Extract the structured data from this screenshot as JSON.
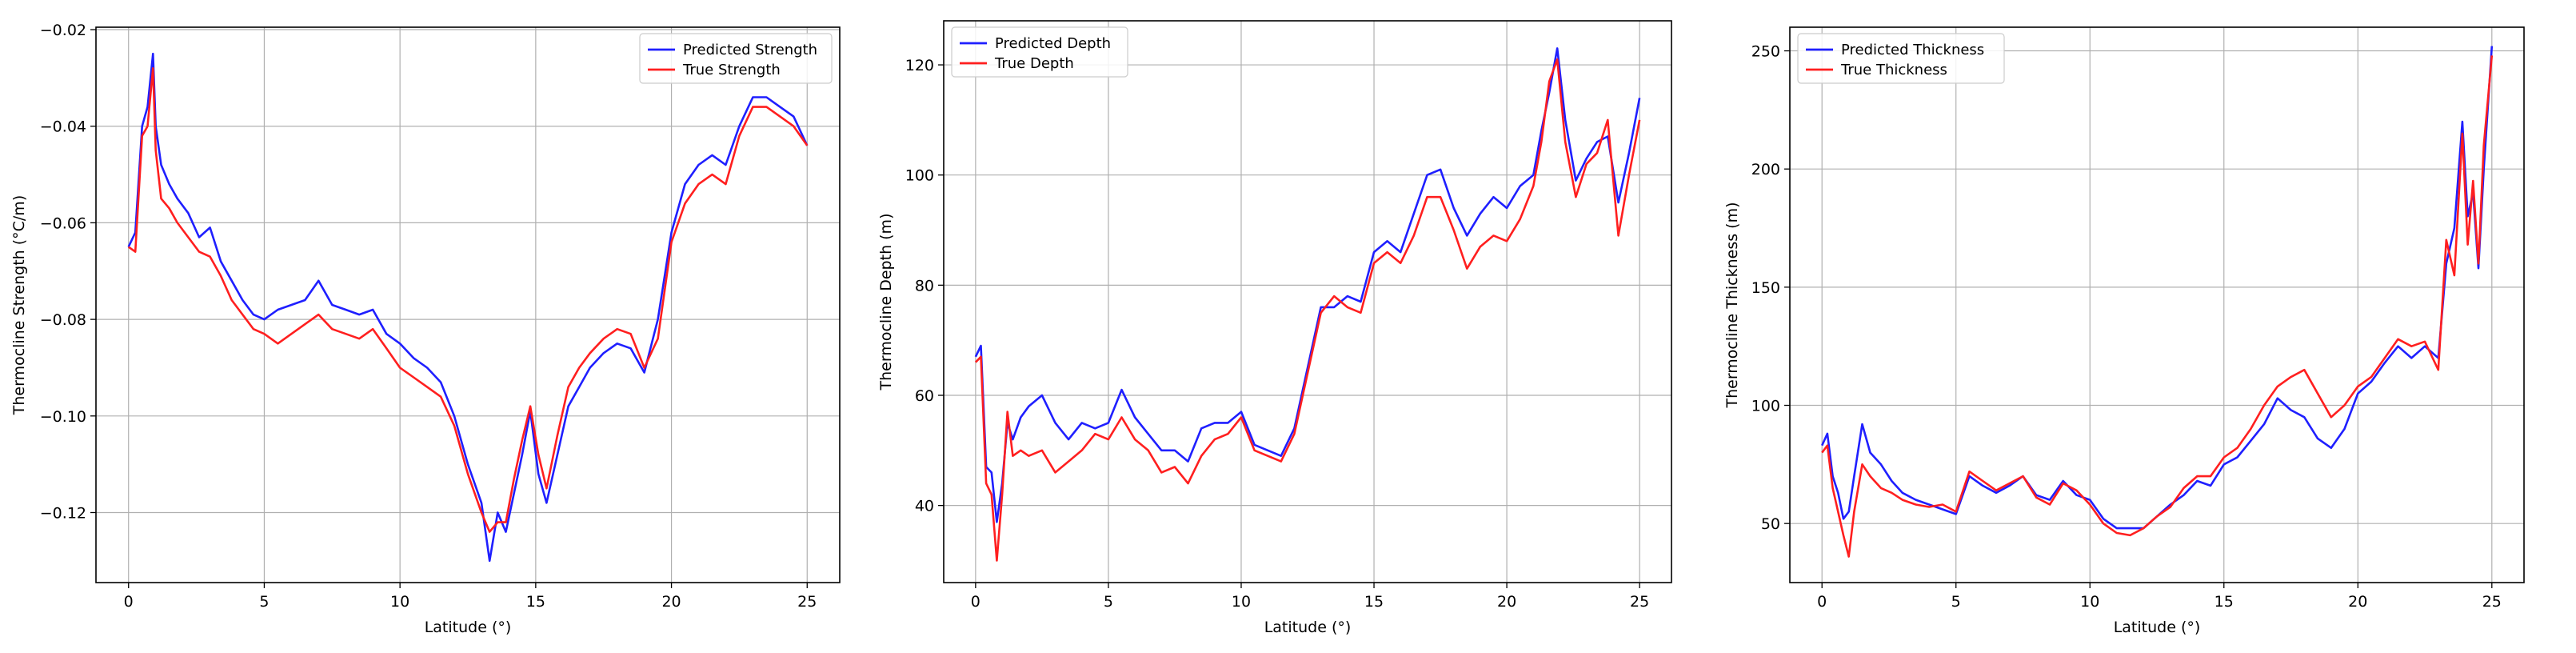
{
  "colors": {
    "predicted": "#1f1fff",
    "true": "#ff1f1f",
    "grid": "#b0b0b0",
    "axes": "#000000",
    "legend_border": "#cccccc"
  },
  "chart_data": [
    {
      "type": "line",
      "title": "",
      "xlabel": "Latitude (°)",
      "ylabel": "Thermocline Strength (°C/m)",
      "xlim": [
        -1.2,
        26.2
      ],
      "ylim": [
        -0.1345,
        -0.0195
      ],
      "xticks": [
        0,
        5,
        10,
        15,
        20,
        25
      ],
      "yticks": [
        -0.12,
        -0.1,
        -0.08,
        -0.06,
        -0.04,
        -0.02
      ],
      "ytick_labels": [
        "−0.12",
        "−0.10",
        "−0.08",
        "−0.06",
        "−0.04",
        "−0.02"
      ],
      "grid": true,
      "legend_position": "upper right",
      "series": [
        {
          "name": "Predicted Strength",
          "color": "#1f1fff",
          "x": [
            0,
            0.25,
            0.5,
            0.7,
            0.9,
            1.0,
            1.2,
            1.5,
            1.8,
            2.2,
            2.6,
            3.0,
            3.4,
            3.8,
            4.2,
            4.6,
            5.0,
            5.5,
            6.0,
            6.5,
            7.0,
            7.5,
            8.0,
            8.5,
            9.0,
            9.5,
            10.0,
            10.5,
            11.0,
            11.5,
            12.0,
            12.5,
            13.0,
            13.3,
            13.6,
            13.9,
            14.2,
            14.5,
            14.8,
            15.1,
            15.4,
            15.8,
            16.2,
            16.6,
            17.0,
            17.5,
            18.0,
            18.5,
            19.0,
            19.5,
            20.0,
            20.5,
            21.0,
            21.5,
            22.0,
            22.5,
            23.0,
            23.5,
            24.0,
            24.5,
            25.0
          ],
          "y": [
            -0.065,
            -0.062,
            -0.04,
            -0.036,
            -0.025,
            -0.04,
            -0.048,
            -0.052,
            -0.055,
            -0.058,
            -0.063,
            -0.061,
            -0.068,
            -0.072,
            -0.076,
            -0.079,
            -0.08,
            -0.078,
            -0.077,
            -0.076,
            -0.072,
            -0.077,
            -0.078,
            -0.079,
            -0.078,
            -0.083,
            -0.085,
            -0.088,
            -0.09,
            -0.093,
            -0.1,
            -0.11,
            -0.118,
            -0.13,
            -0.12,
            -0.124,
            -0.116,
            -0.108,
            -0.099,
            -0.112,
            -0.118,
            -0.108,
            -0.098,
            -0.094,
            -0.09,
            -0.087,
            -0.085,
            -0.086,
            -0.091,
            -0.08,
            -0.062,
            -0.052,
            -0.048,
            -0.046,
            -0.048,
            -0.04,
            -0.034,
            -0.034,
            -0.036,
            -0.038,
            -0.044
          ]
        },
        {
          "name": "True Strength",
          "color": "#ff1f1f",
          "x": [
            0,
            0.25,
            0.5,
            0.7,
            0.9,
            1.0,
            1.2,
            1.5,
            1.8,
            2.2,
            2.6,
            3.0,
            3.4,
            3.8,
            4.2,
            4.6,
            5.0,
            5.5,
            6.0,
            6.5,
            7.0,
            7.5,
            8.0,
            8.5,
            9.0,
            9.5,
            10.0,
            10.5,
            11.0,
            11.5,
            12.0,
            12.5,
            13.0,
            13.3,
            13.6,
            13.9,
            14.2,
            14.5,
            14.8,
            15.1,
            15.4,
            15.8,
            16.2,
            16.6,
            17.0,
            17.5,
            18.0,
            18.5,
            19.0,
            19.5,
            20.0,
            20.5,
            21.0,
            21.5,
            22.0,
            22.5,
            23.0,
            23.5,
            24.0,
            24.5,
            25.0
          ],
          "y": [
            -0.065,
            -0.066,
            -0.042,
            -0.04,
            -0.028,
            -0.045,
            -0.055,
            -0.057,
            -0.06,
            -0.063,
            -0.066,
            -0.067,
            -0.071,
            -0.076,
            -0.079,
            -0.082,
            -0.083,
            -0.085,
            -0.083,
            -0.081,
            -0.079,
            -0.082,
            -0.083,
            -0.084,
            -0.082,
            -0.086,
            -0.09,
            -0.092,
            -0.094,
            -0.096,
            -0.102,
            -0.112,
            -0.12,
            -0.124,
            -0.122,
            -0.122,
            -0.113,
            -0.105,
            -0.098,
            -0.108,
            -0.115,
            -0.104,
            -0.094,
            -0.09,
            -0.087,
            -0.084,
            -0.082,
            -0.083,
            -0.09,
            -0.084,
            -0.064,
            -0.056,
            -0.052,
            -0.05,
            -0.052,
            -0.042,
            -0.036,
            -0.036,
            -0.038,
            -0.04,
            -0.044
          ]
        }
      ]
    },
    {
      "type": "line",
      "title": "",
      "xlabel": "Latitude (°)",
      "ylabel": "Thermocline Depth (m)",
      "xlim": [
        -1.2,
        26.2
      ],
      "ylim": [
        26,
        128
      ],
      "xticks": [
        0,
        5,
        10,
        15,
        20,
        25
      ],
      "yticks": [
        40,
        60,
        80,
        100,
        120
      ],
      "ytick_labels": [
        "40",
        "60",
        "80",
        "100",
        "120"
      ],
      "grid": true,
      "legend_position": "upper left",
      "series": [
        {
          "name": "Predicted Depth",
          "color": "#1f1fff",
          "x": [
            0,
            0.2,
            0.4,
            0.6,
            0.8,
            1.0,
            1.2,
            1.4,
            1.7,
            2.0,
            2.5,
            3.0,
            3.5,
            4.0,
            4.5,
            5.0,
            5.5,
            6.0,
            6.5,
            7.0,
            7.5,
            8.0,
            8.5,
            9.0,
            9.5,
            10.0,
            10.5,
            11.0,
            11.5,
            12.0,
            12.5,
            13.0,
            13.5,
            14.0,
            14.5,
            15.0,
            15.5,
            16.0,
            16.5,
            17.0,
            17.5,
            18.0,
            18.5,
            19.0,
            19.5,
            20.0,
            20.5,
            21.0,
            21.3,
            21.6,
            21.9,
            22.2,
            22.6,
            23.0,
            23.4,
            23.8,
            24.2,
            24.6,
            25.0
          ],
          "y": [
            67,
            69,
            47,
            46,
            37,
            44,
            55,
            52,
            56,
            58,
            60,
            55,
            52,
            55,
            54,
            55,
            61,
            56,
            53,
            50,
            50,
            48,
            54,
            55,
            55,
            57,
            51,
            50,
            49,
            54,
            65,
            76,
            76,
            78,
            77,
            86,
            88,
            86,
            93,
            100,
            101,
            94,
            89,
            93,
            96,
            94,
            98,
            100,
            108,
            115,
            123,
            110,
            99,
            103,
            106,
            107,
            95,
            104,
            114
          ]
        },
        {
          "name": "True Depth",
          "color": "#ff1f1f",
          "x": [
            0,
            0.2,
            0.4,
            0.6,
            0.8,
            1.0,
            1.2,
            1.4,
            1.7,
            2.0,
            2.5,
            3.0,
            3.5,
            4.0,
            4.5,
            5.0,
            5.5,
            6.0,
            6.5,
            7.0,
            7.5,
            8.0,
            8.5,
            9.0,
            9.5,
            10.0,
            10.5,
            11.0,
            11.5,
            12.0,
            12.5,
            13.0,
            13.5,
            14.0,
            14.5,
            15.0,
            15.5,
            16.0,
            16.5,
            17.0,
            17.5,
            18.0,
            18.5,
            19.0,
            19.5,
            20.0,
            20.5,
            21.0,
            21.3,
            21.6,
            21.9,
            22.2,
            22.6,
            23.0,
            23.4,
            23.8,
            24.2,
            24.6,
            25.0
          ],
          "y": [
            66,
            67,
            44,
            42,
            30,
            42,
            57,
            49,
            50,
            49,
            50,
            46,
            48,
            50,
            53,
            52,
            56,
            52,
            50,
            46,
            47,
            44,
            49,
            52,
            53,
            56,
            50,
            49,
            48,
            53,
            64,
            75,
            78,
            76,
            75,
            84,
            86,
            84,
            89,
            96,
            96,
            90,
            83,
            87,
            89,
            88,
            92,
            98,
            106,
            117,
            121,
            106,
            96,
            102,
            104,
            110,
            89,
            100,
            110
          ]
        }
      ]
    },
    {
      "type": "line",
      "title": "",
      "xlabel": "Latitude (°)",
      "ylabel": "Thermocline Thickness (m)",
      "xlim": [
        -1.2,
        26.2
      ],
      "ylim": [
        25,
        260
      ],
      "xticks": [
        0,
        5,
        10,
        15,
        20,
        25
      ],
      "yticks": [
        50,
        100,
        150,
        200,
        250
      ],
      "ytick_labels": [
        "50",
        "100",
        "150",
        "200",
        "250"
      ],
      "grid": true,
      "legend_position": "upper left",
      "series": [
        {
          "name": "Predicted Thickness",
          "color": "#1f1fff",
          "x": [
            0,
            0.2,
            0.4,
            0.6,
            0.8,
            1.0,
            1.2,
            1.5,
            1.8,
            2.2,
            2.6,
            3.0,
            3.5,
            4.0,
            4.5,
            5.0,
            5.5,
            6.0,
            6.5,
            7.0,
            7.5,
            8.0,
            8.5,
            9.0,
            9.5,
            10.0,
            10.5,
            11.0,
            11.5,
            12.0,
            12.5,
            13.0,
            13.5,
            14.0,
            14.5,
            15.0,
            15.5,
            16.0,
            16.5,
            17.0,
            17.5,
            18.0,
            18.5,
            19.0,
            19.5,
            20.0,
            20.5,
            21.0,
            21.5,
            22.0,
            22.5,
            23.0,
            23.3,
            23.6,
            23.9,
            24.1,
            24.3,
            24.5,
            24.7,
            25.0
          ],
          "y": [
            83,
            88,
            70,
            63,
            52,
            55,
            70,
            92,
            80,
            75,
            68,
            63,
            60,
            58,
            56,
            54,
            70,
            66,
            63,
            66,
            70,
            62,
            60,
            68,
            62,
            60,
            52,
            48,
            48,
            48,
            53,
            58,
            62,
            68,
            66,
            75,
            78,
            85,
            92,
            103,
            98,
            95,
            86,
            82,
            90,
            105,
            110,
            118,
            125,
            120,
            125,
            120,
            160,
            175,
            220,
            180,
            190,
            158,
            200,
            252
          ]
        },
        {
          "name": "True Thickness",
          "color": "#ff1f1f",
          "x": [
            0,
            0.2,
            0.4,
            0.6,
            0.8,
            1.0,
            1.2,
            1.5,
            1.8,
            2.2,
            2.6,
            3.0,
            3.5,
            4.0,
            4.5,
            5.0,
            5.5,
            6.0,
            6.5,
            7.0,
            7.5,
            8.0,
            8.5,
            9.0,
            9.5,
            10.0,
            10.5,
            11.0,
            11.5,
            12.0,
            12.5,
            13.0,
            13.5,
            14.0,
            14.5,
            15.0,
            15.5,
            16.0,
            16.5,
            17.0,
            17.5,
            18.0,
            18.5,
            19.0,
            19.5,
            20.0,
            20.5,
            21.0,
            21.5,
            22.0,
            22.5,
            23.0,
            23.3,
            23.6,
            23.9,
            24.1,
            24.3,
            24.5,
            24.7,
            25.0
          ],
          "y": [
            80,
            83,
            65,
            55,
            45,
            36,
            55,
            75,
            70,
            65,
            63,
            60,
            58,
            57,
            58,
            55,
            72,
            68,
            64,
            67,
            70,
            61,
            58,
            67,
            64,
            58,
            50,
            46,
            45,
            48,
            53,
            57,
            65,
            70,
            70,
            78,
            82,
            90,
            100,
            108,
            112,
            115,
            105,
            95,
            100,
            108,
            112,
            120,
            128,
            125,
            127,
            115,
            170,
            155,
            215,
            168,
            195,
            160,
            210,
            248
          ]
        }
      ]
    }
  ]
}
